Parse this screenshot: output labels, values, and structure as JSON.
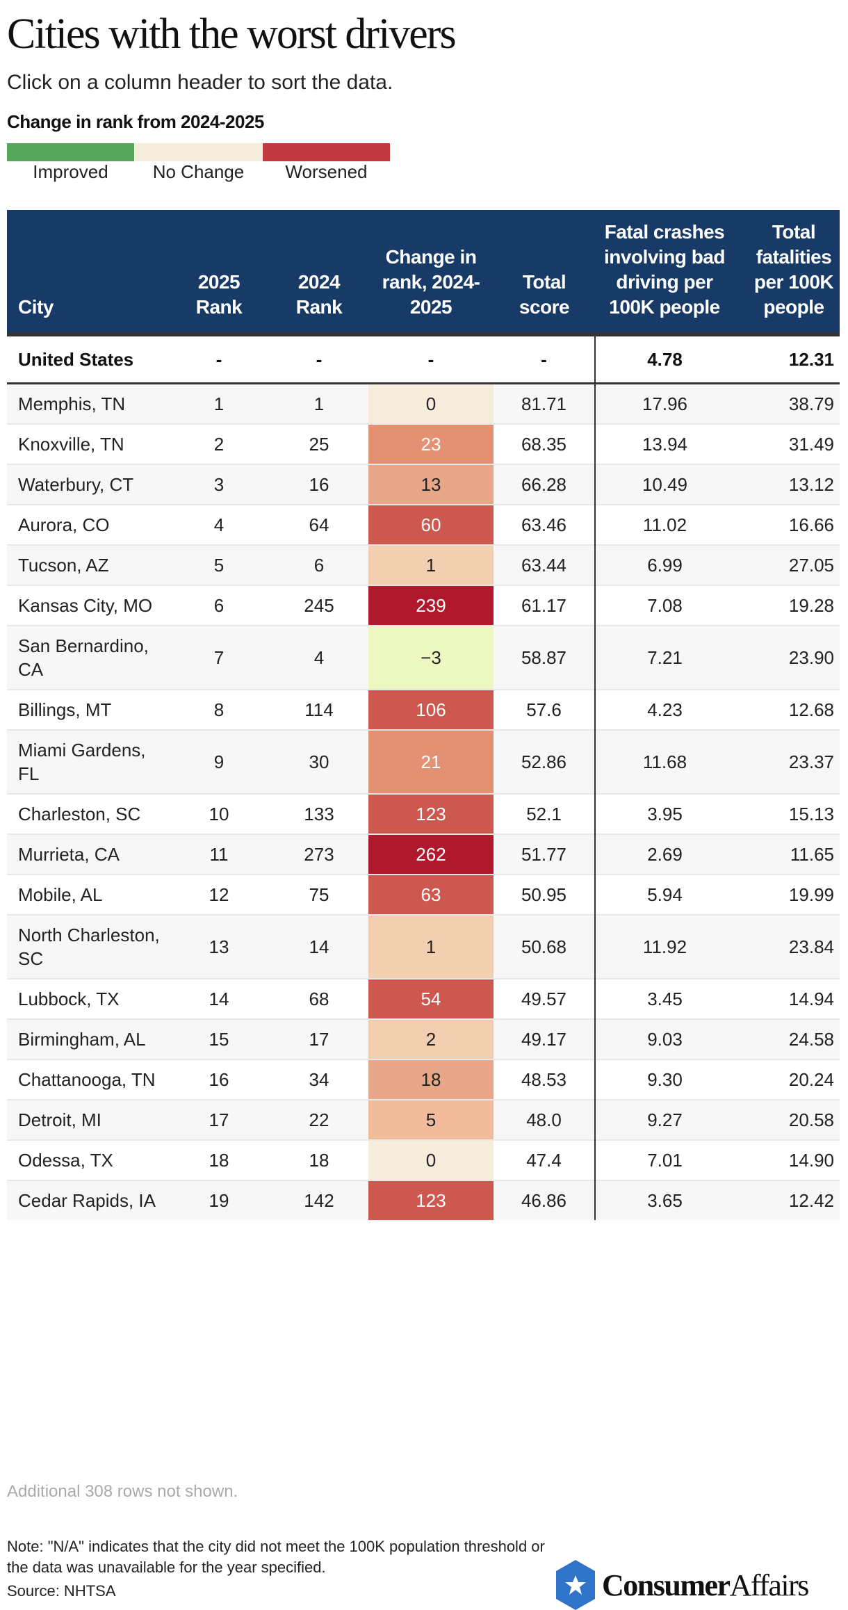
{
  "title": "Cities with the worst drivers",
  "subtitle": "Click on a column header to sort the data.",
  "legend": {
    "title": "Change in rank from 2024-2025",
    "items": [
      {
        "label": "Improved",
        "color": "#55a65a"
      },
      {
        "label": "No Change",
        "color": "#f6ecdc"
      },
      {
        "label": "Worsened",
        "color": "#c0393f"
      }
    ]
  },
  "headers": [
    "City",
    "2025 Rank",
    "2024 Rank",
    "Change in rank, 2024-2025",
    "Total score",
    "Fatal crashes involving bad driving per 100K people",
    "Total fatalities per 100K people"
  ],
  "us_row": [
    "United States",
    "-",
    "-",
    "-",
    "-",
    "4.78",
    "12.31"
  ],
  "rows": [
    [
      "Memphis, TN",
      "1",
      "1",
      "0",
      "81.71",
      "17.96",
      "38.79"
    ],
    [
      "Knoxville, TN",
      "2",
      "25",
      "23",
      "68.35",
      "13.94",
      "31.49"
    ],
    [
      "Waterbury, CT",
      "3",
      "16",
      "13",
      "66.28",
      "10.49",
      "13.12"
    ],
    [
      "Aurora, CO",
      "4",
      "64",
      "60",
      "63.46",
      "11.02",
      "16.66"
    ],
    [
      "Tucson, AZ",
      "5",
      "6",
      "1",
      "63.44",
      "6.99",
      "27.05"
    ],
    [
      "Kansas City, MO",
      "6",
      "245",
      "239",
      "61.17",
      "7.08",
      "19.28"
    ],
    [
      "San Bernardino, CA",
      "7",
      "4",
      "−3",
      "58.87",
      "7.21",
      "23.90"
    ],
    [
      "Billings, MT",
      "8",
      "114",
      "106",
      "57.6",
      "4.23",
      "12.68"
    ],
    [
      "Miami Gardens, FL",
      "9",
      "30",
      "21",
      "52.86",
      "11.68",
      "23.37"
    ],
    [
      "Charleston, SC",
      "10",
      "133",
      "123",
      "52.1",
      "3.95",
      "15.13"
    ],
    [
      "Murrieta, CA",
      "11",
      "273",
      "262",
      "51.77",
      "2.69",
      "11.65"
    ],
    [
      "Mobile, AL",
      "12",
      "75",
      "63",
      "50.95",
      "5.94",
      "19.99"
    ],
    [
      "North Charleston, SC",
      "13",
      "14",
      "1",
      "50.68",
      "11.92",
      "23.84"
    ],
    [
      "Lubbock, TX",
      "14",
      "68",
      "54",
      "49.57",
      "3.45",
      "14.94"
    ],
    [
      "Birmingham, AL",
      "15",
      "17",
      "2",
      "49.17",
      "9.03",
      "24.58"
    ],
    [
      "Chattanooga, TN",
      "16",
      "34",
      "18",
      "48.53",
      "9.30",
      "20.24"
    ],
    [
      "Detroit, MI",
      "17",
      "22",
      "5",
      "48.0",
      "9.27",
      "20.58"
    ],
    [
      "Odessa, TX",
      "18",
      "18",
      "0",
      "47.4",
      "7.01",
      "14.90"
    ],
    [
      "Cedar Rapids, IA",
      "19",
      "142",
      "123",
      "46.86",
      "3.65",
      "12.42"
    ]
  ],
  "more_rows": "Additional 308 rows not shown.",
  "note": "Note: \"N/A\" indicates that the city did not meet the 100K population threshold or the data was unavailable for the year specified.",
  "source": "Source: NHTSA",
  "logo": "ConsumerAffairs",
  "colors": {
    "header": "#173a66",
    "improved": "#edf7c0",
    "none": "#f6ecdc",
    "small": "#f3cfb2",
    "mild": "#f2bc9c",
    "moderate": "#e8a788",
    "notable": "#e39073",
    "high": "#cd5850",
    "severe": "#b0182b"
  }
}
